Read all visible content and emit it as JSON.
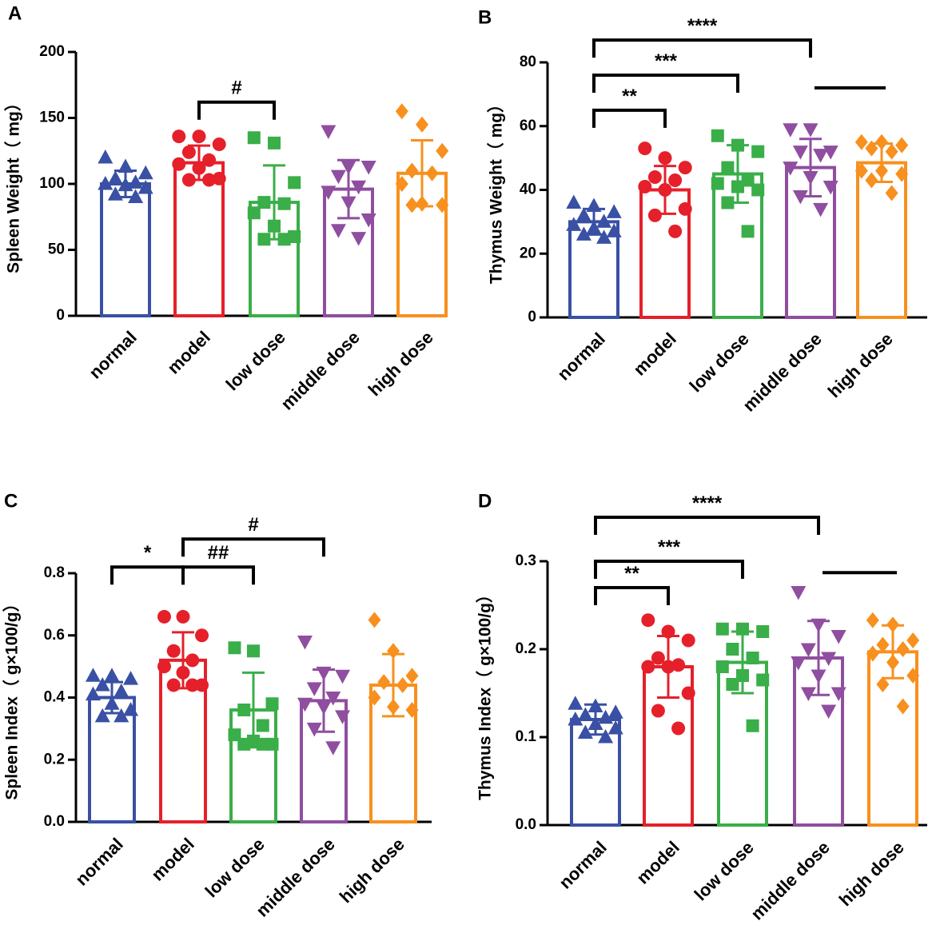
{
  "colors": {
    "normal": "#3950A4",
    "model": "#E5202A",
    "low dose": "#3AAE49",
    "middle dose": "#8F4E9F",
    "high dose": "#F7901E",
    "axis": "#000000"
  },
  "chart_data": [
    {
      "id": "A",
      "panel_label": "A",
      "type": "bar",
      "categories": [
        "normal",
        "model",
        "low dose",
        "middle dose",
        "high dose"
      ],
      "ylabel": "Spleen Weight（ mg）",
      "ylim": [
        0,
        200
      ],
      "yticks": [
        0,
        50,
        100,
        150,
        200
      ],
      "ytick_labels": [
        "0",
        "50",
        "100",
        "150",
        "200"
      ],
      "series": [
        {
          "name": "normal",
          "marker": "triangle-up",
          "mean": 100,
          "sd": 10,
          "points": [
            120,
            113,
            108,
            104,
            101,
            100,
            99,
            97,
            92,
            90
          ]
        },
        {
          "name": "model",
          "marker": "circle",
          "mean": 116,
          "sd": 13,
          "points": [
            136,
            136,
            130,
            124,
            118,
            115,
            112,
            104,
            103,
            103
          ]
        },
        {
          "name": "low dose",
          "marker": "square",
          "mean": 86,
          "sd": 28,
          "points": [
            135,
            131,
            101,
            86,
            85,
            78,
            68,
            60,
            58,
            58
          ]
        },
        {
          "name": "middle dose",
          "marker": "triangle-down",
          "mean": 96,
          "sd": 22,
          "points": [
            140,
            113,
            113,
            106,
            98,
            94,
            86,
            73,
            65,
            59
          ]
        },
        {
          "name": "high dose",
          "marker": "diamond",
          "mean": 108,
          "sd": 25,
          "points": [
            155,
            145,
            125,
            110,
            108,
            100,
            85,
            84,
            84
          ]
        }
      ],
      "annotations": [
        {
          "from": 1,
          "to": 2,
          "level": 162,
          "text": "#"
        }
      ]
    },
    {
      "id": "B",
      "panel_label": "B",
      "type": "bar",
      "categories": [
        "normal",
        "model",
        "low dose",
        "middle dose",
        "high dose"
      ],
      "ylabel": "Thymus Weight（ mg）",
      "ylim": [
        0,
        80
      ],
      "yticks": [
        0,
        20,
        40,
        60,
        80
      ],
      "ytick_labels": [
        "0",
        "20",
        "40",
        "60",
        "80"
      ],
      "series": [
        {
          "name": "normal",
          "marker": "triangle-up",
          "mean": 30,
          "sd": 4,
          "points": [
            36,
            35,
            33,
            32,
            30,
            29,
            28,
            27,
            26,
            25
          ]
        },
        {
          "name": "model",
          "marker": "circle",
          "mean": 40,
          "sd": 7.5,
          "points": [
            53,
            50,
            47,
            44,
            43,
            41,
            40,
            34,
            32,
            27
          ]
        },
        {
          "name": "low dose",
          "marker": "square",
          "mean": 45,
          "sd": 9,
          "points": [
            57,
            54,
            52,
            47,
            43,
            42,
            41,
            40,
            36,
            27
          ]
        },
        {
          "name": "middle dose",
          "marker": "triangle-down",
          "mean": 47,
          "sd": 9,
          "points": [
            59,
            59,
            52,
            52,
            51,
            47,
            44,
            41,
            38,
            34
          ]
        },
        {
          "name": "high dose",
          "marker": "diamond",
          "mean": 48.5,
          "sd": 6,
          "points": [
            55,
            55,
            54,
            53,
            52,
            46,
            46,
            45,
            43,
            39
          ]
        }
      ],
      "annotations": [
        {
          "from": 0,
          "to": 1,
          "level": 65,
          "text": "**"
        },
        {
          "from": 0,
          "to": 2,
          "level": 76,
          "text": "***"
        },
        {
          "from": 0,
          "to": 3,
          "level": 87,
          "text": "****"
        },
        {
          "line_only": true,
          "from": 3,
          "to": 4,
          "level": 72
        }
      ]
    },
    {
      "id": "C",
      "panel_label": "C",
      "type": "bar",
      "categories": [
        "normal",
        "model",
        "low dose",
        "middle dose",
        "high dose"
      ],
      "ylabel": "Spleen Index（ g×100/g）",
      "ylim": [
        0,
        0.8
      ],
      "yticks": [
        0,
        0.2,
        0.4,
        0.6,
        0.8
      ],
      "ytick_labels": [
        "0.0",
        "0.2",
        "0.4",
        "0.6",
        "0.8"
      ],
      "series": [
        {
          "name": "normal",
          "marker": "triangle-up",
          "mean": 0.4,
          "sd": 0.05,
          "points": [
            0.47,
            0.47,
            0.46,
            0.44,
            0.42,
            0.41,
            0.38,
            0.36,
            0.34,
            0.34
          ]
        },
        {
          "name": "model",
          "marker": "circle",
          "mean": 0.52,
          "sd": 0.09,
          "points": [
            0.66,
            0.66,
            0.6,
            0.55,
            0.52,
            0.5,
            0.48,
            0.44,
            0.44,
            0.44
          ]
        },
        {
          "name": "low dose",
          "marker": "square",
          "mean": 0.36,
          "sd": 0.12,
          "points": [
            0.56,
            0.55,
            0.38,
            0.36,
            0.31,
            0.28,
            0.26,
            0.25,
            0.25,
            0.25
          ]
        },
        {
          "name": "middle dose",
          "marker": "triangle-down",
          "mean": 0.39,
          "sd": 0.1,
          "points": [
            0.58,
            0.48,
            0.47,
            0.43,
            0.4,
            0.38,
            0.37,
            0.34,
            0.3,
            0.24
          ]
        },
        {
          "name": "high dose",
          "marker": "diamond",
          "mean": 0.44,
          "sd": 0.1,
          "points": [
            0.65,
            0.55,
            0.47,
            0.45,
            0.44,
            0.4,
            0.37,
            0.36
          ]
        }
      ],
      "annotations": [
        {
          "from": 0,
          "to": 1,
          "level": 0.82,
          "text": "*"
        },
        {
          "from": 1,
          "to": 2,
          "level": 0.82,
          "text": "##"
        },
        {
          "from": 1,
          "to": 3,
          "level": 0.91,
          "text": "#"
        }
      ]
    },
    {
      "id": "D",
      "panel_label": "D",
      "type": "bar",
      "categories": [
        "normal",
        "model",
        "low dose",
        "middle dose",
        "high dose"
      ],
      "ylabel": "Thymus Index（ g×100/g）",
      "ylim": [
        0,
        0.3
      ],
      "yticks": [
        0,
        0.1,
        0.2,
        0.3
      ],
      "ytick_labels": [
        "0.0",
        "0.1",
        "0.2",
        "0.3"
      ],
      "series": [
        {
          "name": "normal",
          "marker": "triangle-up",
          "mean": 0.12,
          "sd": 0.017,
          "points": [
            0.138,
            0.135,
            0.128,
            0.125,
            0.122,
            0.12,
            0.115,
            0.11,
            0.105,
            0.1
          ]
        },
        {
          "name": "model",
          "marker": "circle",
          "mean": 0.18,
          "sd": 0.035,
          "points": [
            0.233,
            0.22,
            0.21,
            0.19,
            0.182,
            0.18,
            0.18,
            0.15,
            0.13,
            0.11
          ]
        },
        {
          "name": "low dose",
          "marker": "square",
          "mean": 0.185,
          "sd": 0.035,
          "points": [
            0.223,
            0.223,
            0.22,
            0.2,
            0.19,
            0.18,
            0.17,
            0.165,
            0.16,
            0.113
          ]
        },
        {
          "name": "middle dose",
          "marker": "triangle-down",
          "mean": 0.19,
          "sd": 0.042,
          "points": [
            0.265,
            0.228,
            0.215,
            0.2,
            0.19,
            0.185,
            0.17,
            0.15,
            0.15,
            0.13
          ]
        },
        {
          "name": "high dose",
          "marker": "diamond",
          "mean": 0.197,
          "sd": 0.03,
          "points": [
            0.233,
            0.228,
            0.21,
            0.205,
            0.2,
            0.195,
            0.185,
            0.17,
            0.16,
            0.135
          ]
        }
      ],
      "annotations": [
        {
          "from": 0,
          "to": 1,
          "level": 0.27,
          "text": "**"
        },
        {
          "from": 0,
          "to": 2,
          "level": 0.3,
          "text": "***"
        },
        {
          "from": 0,
          "to": 3,
          "level": 0.35,
          "text": "****"
        },
        {
          "line_only": true,
          "from": 3,
          "to": 4,
          "level": 0.287
        }
      ]
    }
  ]
}
